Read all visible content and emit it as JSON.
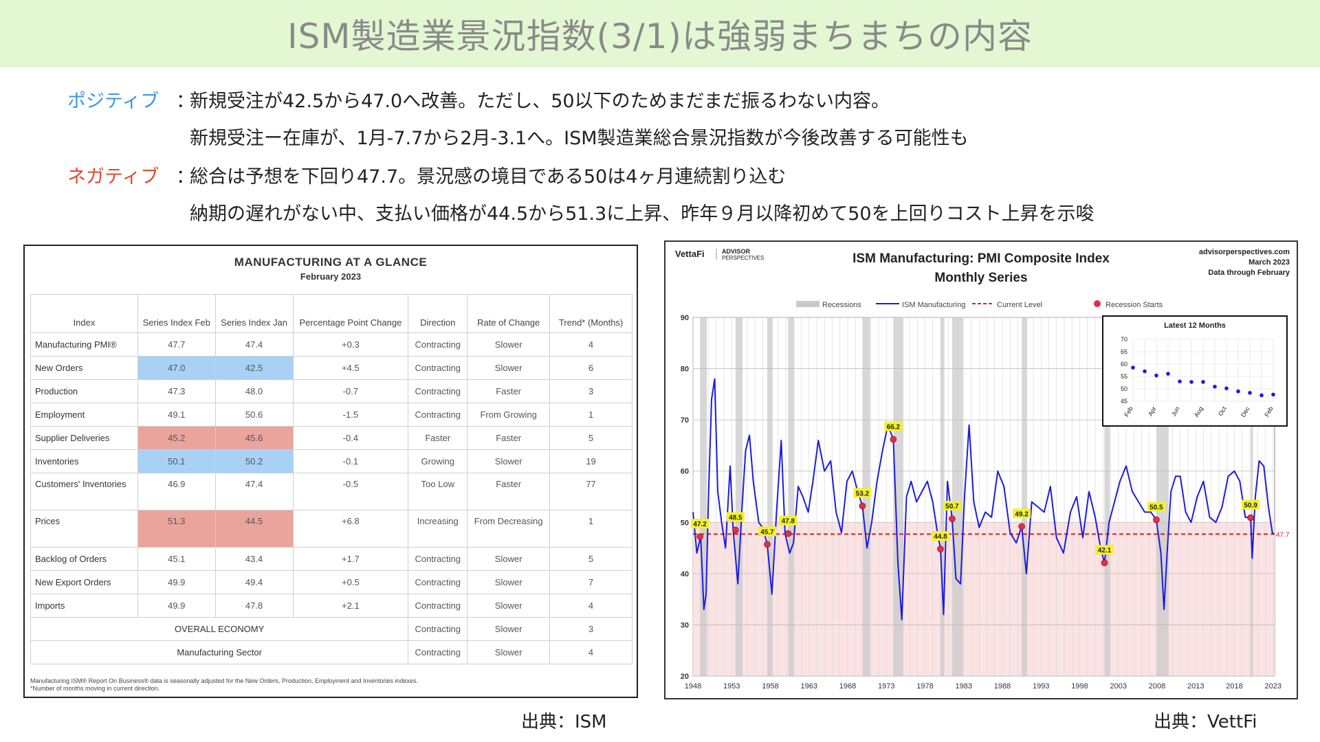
{
  "title": "ISM製造業景況指数(3/1)は強弱まちまちの内容",
  "bullets": {
    "positive_label": "ポジティブ",
    "negative_label": "ネガティブ",
    "colon": "：",
    "positive_1": "新規受注が42.5から47.0へ改善。ただし、50以下のためまだまだ振るわない内容。",
    "positive_2": "新規受注ー在庫が、1月-7.7から2月-3.1へ。ISM製造業総合景況指数が今後改善する可能性も",
    "negative_1": "総合は予想を下回り47.7。景況感の境目である50は4ヶ月連続割り込む",
    "negative_2": "納期の遅れがない中、支払い価格が44.5から51.3に上昇、昨年９月以降初めて50を上回りコスト上昇を示唆"
  },
  "ism_table": {
    "title": "MANUFACTURING AT A GLANCE",
    "subtitle": "February 2023",
    "headers": [
      "Index",
      "Series Index Feb",
      "Series Index Jan",
      "Percentage Point Change",
      "Direction",
      "Rate of Change",
      "Trend* (Months)"
    ],
    "rows": [
      {
        "index": "Manufacturing PMI®",
        "feb": "47.7",
        "jan": "47.4",
        "change": "+0.3",
        "direction": "Contracting",
        "rate": "Slower",
        "trend": "4",
        "hl": ""
      },
      {
        "index": "New Orders",
        "feb": "47.0",
        "jan": "42.5",
        "change": "+4.5",
        "direction": "Contracting",
        "rate": "Slower",
        "trend": "6",
        "hl": "blue"
      },
      {
        "index": "Production",
        "feb": "47.3",
        "jan": "48.0",
        "change": "-0.7",
        "direction": "Contracting",
        "rate": "Faster",
        "trend": "3",
        "hl": ""
      },
      {
        "index": "Employment",
        "feb": "49.1",
        "jan": "50.6",
        "change": "-1.5",
        "direction": "Contracting",
        "rate": "From Growing",
        "trend": "1",
        "hl": ""
      },
      {
        "index": "Supplier Deliveries",
        "feb": "45.2",
        "jan": "45.6",
        "change": "-0.4",
        "direction": "Faster",
        "rate": "Faster",
        "trend": "5",
        "hl": "red"
      },
      {
        "index": "Inventories",
        "feb": "50.1",
        "jan": "50.2",
        "change": "-0.1",
        "direction": "Growing",
        "rate": "Slower",
        "trend": "19",
        "hl": "blue"
      },
      {
        "index": "Customers' Inventories",
        "feb": "46.9",
        "jan": "47.4",
        "change": "-0.5",
        "direction": "Too Low",
        "rate": "Faster",
        "trend": "77",
        "hl": ""
      },
      {
        "index": "Prices",
        "feb": "51.3",
        "jan": "44.5",
        "change": "+6.8",
        "direction": "Increasing",
        "rate": "From Decreasing",
        "trend": "1",
        "hl": "red"
      },
      {
        "index": "Backlog of Orders",
        "feb": "45.1",
        "jan": "43.4",
        "change": "+1.7",
        "direction": "Contracting",
        "rate": "Slower",
        "trend": "5",
        "hl": ""
      },
      {
        "index": "New Export Orders",
        "feb": "49.9",
        "jan": "49.4",
        "change": "+0.5",
        "direction": "Contracting",
        "rate": "Slower",
        "trend": "7",
        "hl": ""
      },
      {
        "index": "Imports",
        "feb": "49.9",
        "jan": "47.8",
        "change": "+2.1",
        "direction": "Contracting",
        "rate": "Slower",
        "trend": "4",
        "hl": ""
      }
    ],
    "summary_rows": [
      {
        "label": "OVERALL ECONOMY",
        "direction": "Contracting",
        "rate": "Slower",
        "trend": "3"
      },
      {
        "label": "Manufacturing Sector",
        "direction": "Contracting",
        "rate": "Slower",
        "trend": "4"
      }
    ],
    "footnote_1": "Manufacturing ISM® Report On Business® data is seasonally adjusted for the New Orders, Production, Employment and Inventories indexes.",
    "footnote_2": "*Number of months moving in current direction."
  },
  "sources": {
    "ism": "出典：ISM",
    "vettafi": "出典：VettFi"
  },
  "vettafi_header": {
    "logo": "VettaFi",
    "logo2_a": "ADVISOR",
    "logo2_b": "PERSPECTIVES",
    "site": "advisorperspectives.com",
    "date": "March 2023",
    "through": "Data through February"
  },
  "chart_data": [
    {
      "type": "line",
      "title": "ISM Manufacturing: PMI Composite Index",
      "subtitle": "Monthly Series",
      "legend": [
        "Recessions",
        "ISM Manufacturing",
        "Current Level",
        "Recession Starts"
      ],
      "legend_position": "top",
      "colors": {
        "line": "#1a1ae6",
        "current": "#d22222",
        "recession_band": "#c9c9c9",
        "below50_fill": "#fbe3e3",
        "marker": "#e0304a",
        "label_bg": "#f2f22a"
      },
      "ylim": [
        20,
        90
      ],
      "yticks": [
        20,
        30,
        40,
        50,
        60,
        70,
        80,
        90
      ],
      "xlim": [
        1948,
        2023.2
      ],
      "xticks": [
        1948,
        1953,
        1958,
        1963,
        1968,
        1973,
        1978,
        1983,
        1988,
        1993,
        1998,
        2003,
        2008,
        2013,
        2018,
        2023
      ],
      "current_level": 47.7,
      "current_label": "47.7",
      "recessions": [
        [
          1948.9,
          1949.8
        ],
        [
          1953.5,
          1954.4
        ],
        [
          1957.6,
          1958.3
        ],
        [
          1960.3,
          1961.1
        ],
        [
          1969.9,
          1970.9
        ],
        [
          1973.9,
          1975.2
        ],
        [
          1980.0,
          1980.5
        ],
        [
          1981.5,
          1982.9
        ],
        [
          1990.5,
          1991.2
        ],
        [
          2001.2,
          2001.9
        ],
        [
          2007.9,
          2009.5
        ],
        [
          2020.1,
          2020.4
        ]
      ],
      "recession_starts": [
        {
          "x": 1948.9,
          "y": 47.2,
          "label": "47.2"
        },
        {
          "x": 1953.5,
          "y": 48.5,
          "label": "48.5"
        },
        {
          "x": 1957.6,
          "y": 45.7,
          "label": "45.7"
        },
        {
          "x": 1960.3,
          "y": 47.8,
          "label": "47.8"
        },
        {
          "x": 1969.9,
          "y": 53.2,
          "label": "53.2"
        },
        {
          "x": 1973.9,
          "y": 66.2,
          "label": "66.2"
        },
        {
          "x": 1980.0,
          "y": 44.8,
          "label": "44.8"
        },
        {
          "x": 1981.5,
          "y": 50.7,
          "label": "50.7"
        },
        {
          "x": 1990.5,
          "y": 49.2,
          "label": "49.2"
        },
        {
          "x": 2001.2,
          "y": 42.1,
          "label": "42.1"
        },
        {
          "x": 2007.9,
          "y": 50.5,
          "label": "50.5"
        },
        {
          "x": 2020.1,
          "y": 50.9,
          "label": "50.9"
        }
      ],
      "series": [
        {
          "name": "ISM Manufacturing",
          "x": [
            1948.0,
            1948.5,
            1949.0,
            1949.4,
            1949.7,
            1950.0,
            1950.4,
            1950.8,
            1951.2,
            1951.7,
            1952.2,
            1952.8,
            1953.2,
            1953.8,
            1954.3,
            1954.8,
            1955.3,
            1955.8,
            1956.5,
            1957.0,
            1957.6,
            1958.2,
            1958.8,
            1959.4,
            1959.9,
            1960.5,
            1961.0,
            1961.6,
            1962.2,
            1962.9,
            1963.5,
            1964.2,
            1965.0,
            1965.8,
            1966.5,
            1967.2,
            1967.9,
            1968.6,
            1969.3,
            1969.9,
            1970.5,
            1971.1,
            1971.8,
            1972.5,
            1973.2,
            1973.9,
            1974.5,
            1975.0,
            1975.6,
            1976.2,
            1976.9,
            1977.6,
            1978.3,
            1979.0,
            1979.6,
            1980.0,
            1980.4,
            1980.9,
            1981.5,
            1982.0,
            1982.6,
            1983.1,
            1983.7,
            1984.3,
            1985.0,
            1985.8,
            1986.6,
            1987.4,
            1988.2,
            1989.0,
            1989.8,
            1990.5,
            1991.1,
            1991.8,
            1992.6,
            1993.4,
            1994.2,
            1995.0,
            1995.9,
            1996.8,
            1997.6,
            1998.4,
            1999.2,
            2000.0,
            2000.7,
            2001.2,
            2001.8,
            2002.5,
            2003.2,
            2004.0,
            2004.8,
            2005.6,
            2006.4,
            2007.2,
            2007.9,
            2008.5,
            2008.9,
            2009.3,
            2009.8,
            2010.4,
            2011.0,
            2011.7,
            2012.4,
            2013.2,
            2014.0,
            2014.8,
            2015.6,
            2016.4,
            2017.2,
            2018.0,
            2018.7,
            2019.4,
            2020.1,
            2020.3,
            2020.7,
            2021.2,
            2021.8,
            2022.4,
            2022.9,
            2023.1
          ],
          "values": [
            52,
            44,
            47.2,
            33,
            36,
            55,
            74,
            78,
            56,
            50,
            45,
            61,
            48.5,
            38,
            52,
            64,
            67,
            58,
            50,
            49,
            45.7,
            36,
            52,
            66,
            47.8,
            44,
            46,
            57,
            55,
            52,
            58,
            66,
            60,
            62,
            52,
            48,
            58,
            60,
            56,
            53.2,
            45,
            50,
            58,
            64,
            69,
            66.2,
            42,
            31,
            55,
            58,
            54,
            56,
            58,
            54,
            48,
            44.8,
            32,
            58,
            50.7,
            39,
            38,
            55,
            69,
            54,
            49,
            52,
            51,
            60,
            57,
            48,
            46,
            49.2,
            40,
            54,
            53,
            52,
            57,
            47,
            44,
            52,
            55,
            47,
            56,
            51,
            45,
            42.1,
            50,
            54,
            58,
            61,
            56,
            54,
            52,
            52,
            50.5,
            44,
            33,
            44,
            56,
            59,
            59,
            52,
            50,
            55,
            58,
            51,
            50,
            53,
            59,
            60,
            58,
            51,
            50.9,
            43,
            55,
            62,
            61,
            53,
            48,
            47.7
          ]
        }
      ]
    },
    {
      "type": "line",
      "title": "Latest 12 Months",
      "ylim": [
        45,
        70
      ],
      "yticks": [
        45,
        50,
        55,
        60,
        65,
        70
      ],
      "categories": [
        "Feb",
        "Mar",
        "Apr",
        "May",
        "Jun",
        "Jul",
        "Aug",
        "Sep",
        "Oct",
        "Nov",
        "Dec",
        "Jan",
        "Feb"
      ],
      "xtick_labels": [
        "Feb",
        "Apr",
        "Jun",
        "Aug",
        "Oct",
        "Dec",
        "Feb"
      ],
      "values": [
        58.6,
        57.1,
        55.4,
        56.1,
        53.0,
        52.8,
        52.8,
        50.9,
        50.2,
        49.0,
        48.4,
        47.4,
        47.7
      ]
    }
  ]
}
